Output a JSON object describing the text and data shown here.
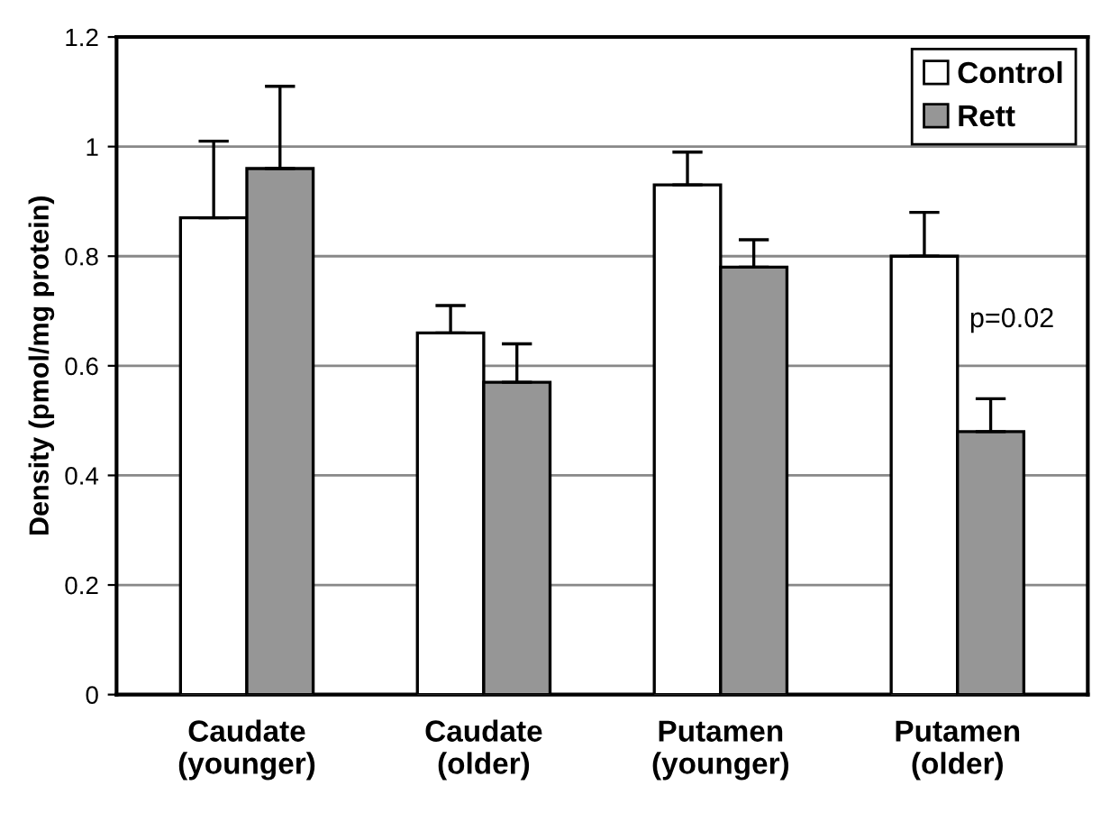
{
  "chart_data": {
    "type": "bar",
    "ylabel": "Density (pmol/mg protein)",
    "categories": [
      "Caudate\n(younger)",
      "Caudate\n(older)",
      "Putamen\n(younger)",
      "Putamen\n(older)"
    ],
    "series": [
      {
        "name": "Control",
        "color": "#ffffff",
        "values": [
          0.87,
          0.66,
          0.93,
          0.8
        ],
        "errors": [
          [
            0.87,
            1.01
          ],
          [
            0.66,
            0.71
          ],
          [
            0.93,
            0.99
          ],
          [
            0.8,
            0.88
          ]
        ]
      },
      {
        "name": "Rett",
        "color": "#969696",
        "values": [
          0.96,
          0.57,
          0.78,
          0.48
        ],
        "errors": [
          [
            0.96,
            1.11
          ],
          [
            0.57,
            0.64
          ],
          [
            0.78,
            0.83
          ],
          [
            0.48,
            0.54
          ]
        ]
      }
    ],
    "ylim": [
      0,
      1.2
    ],
    "yticks": [
      0,
      0.2,
      0.4,
      0.6,
      0.8,
      1,
      1.2
    ],
    "grid": "y",
    "legend": "top right",
    "annotations": [
      {
        "text": "p=0.02",
        "x": "Putamen\n(older)",
        "y": 0.66
      }
    ]
  }
}
